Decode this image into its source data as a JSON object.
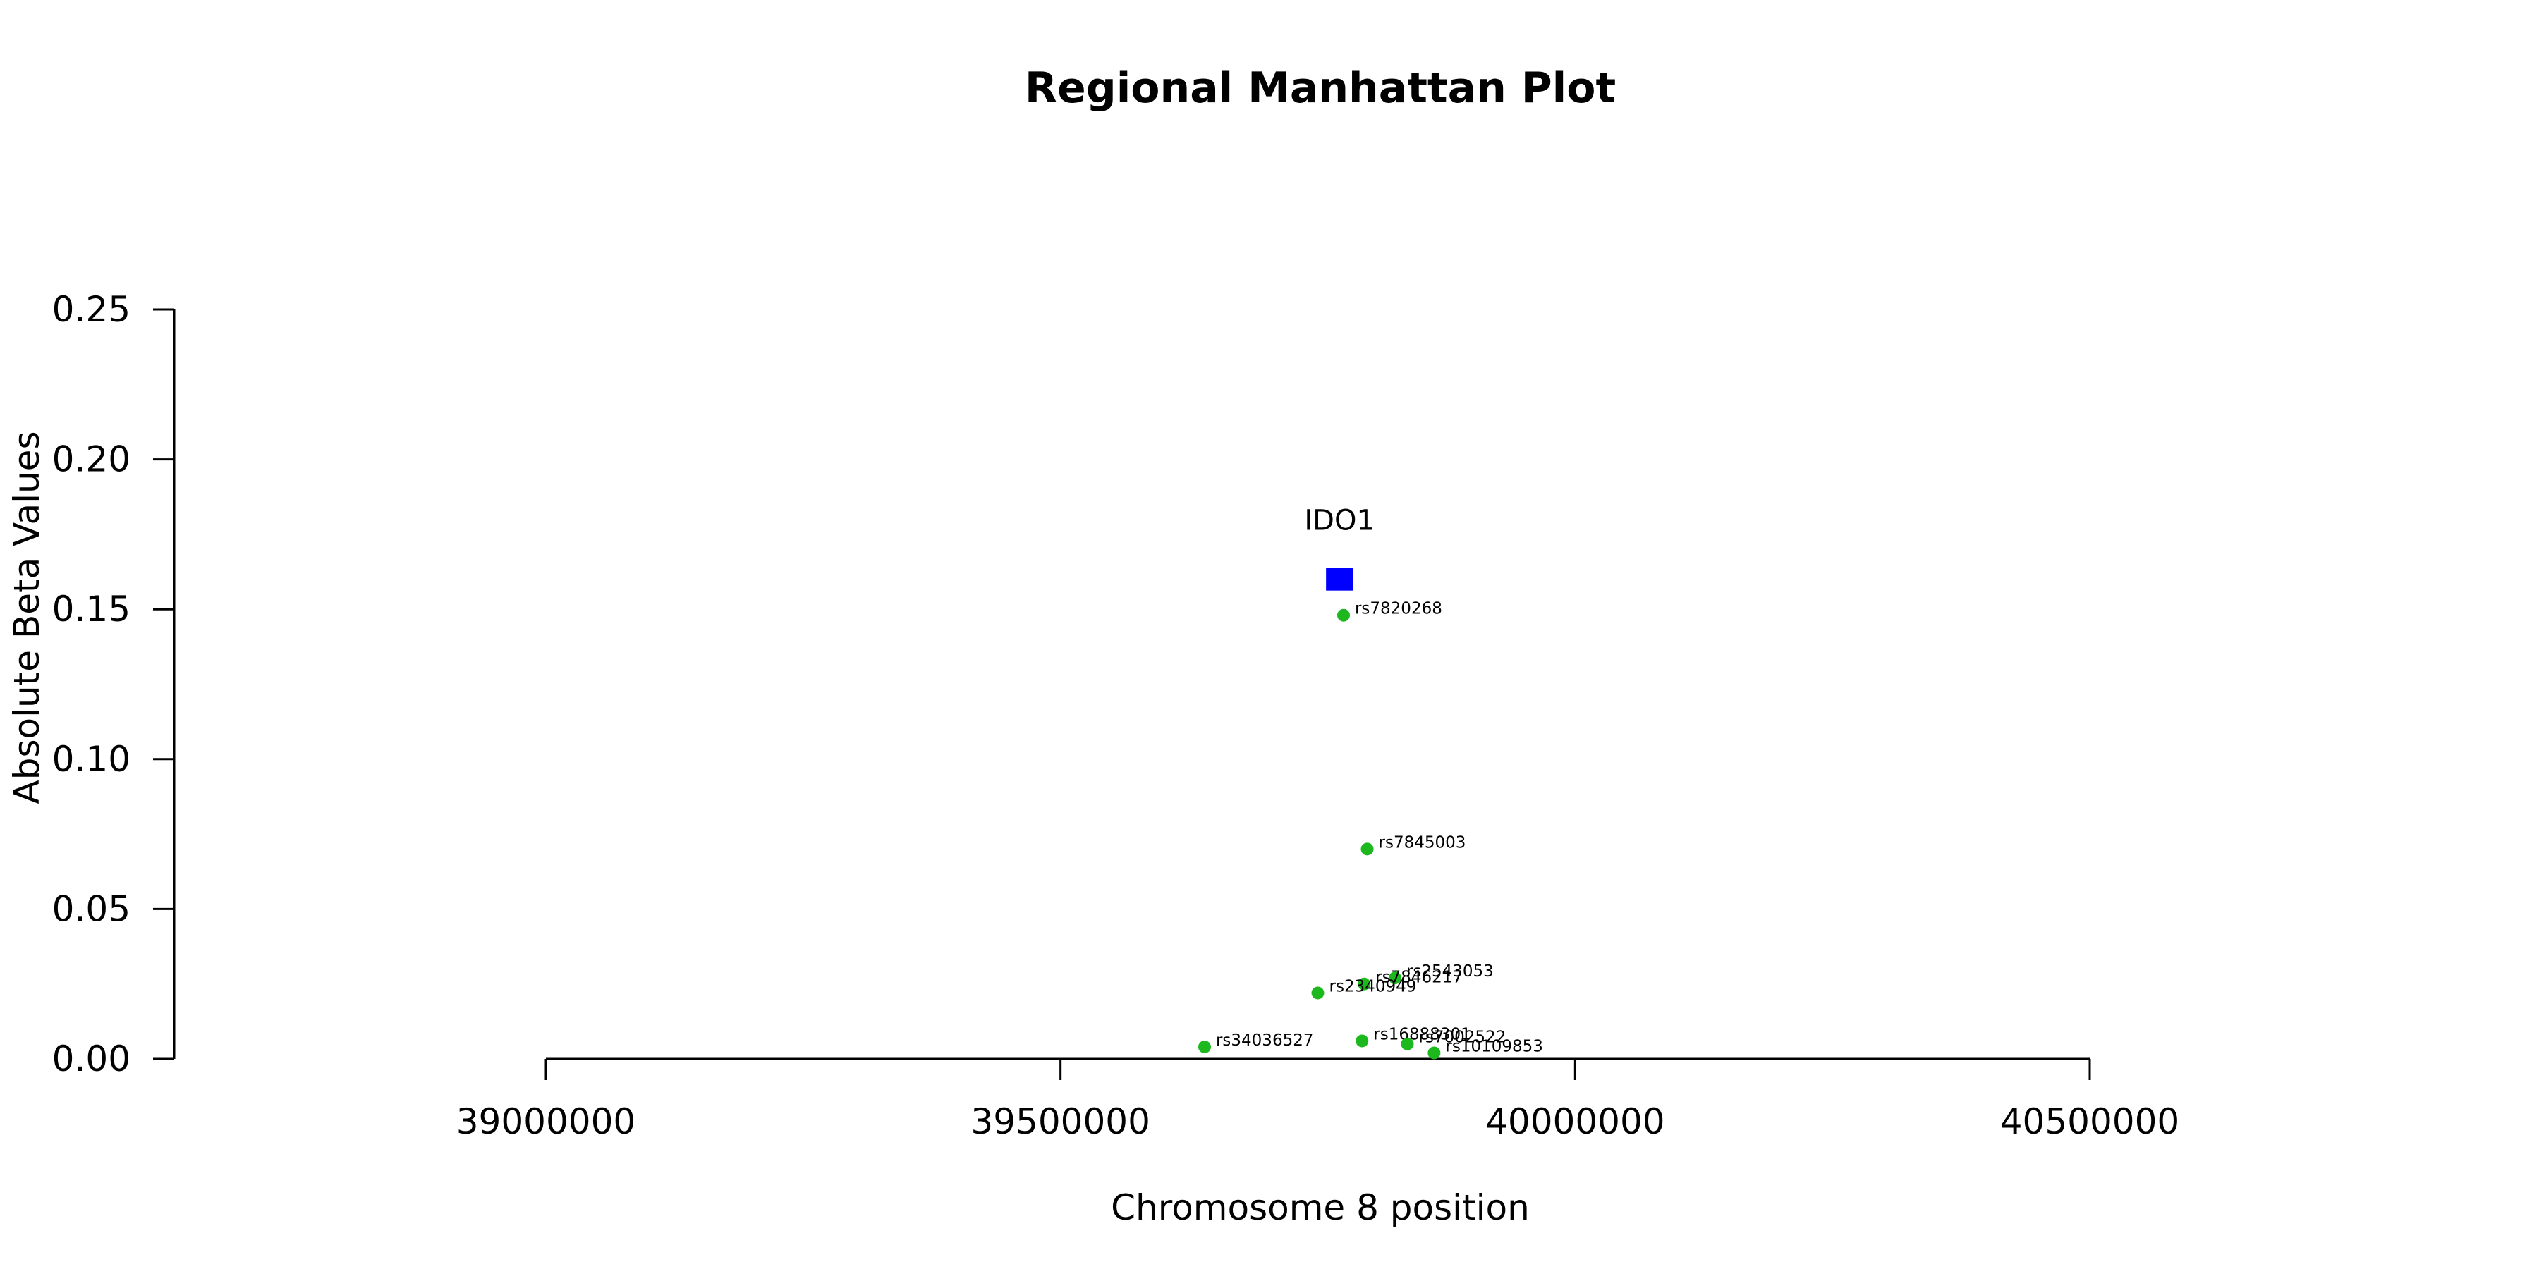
{
  "chart_data": {
    "type": "scatter",
    "title": "Regional Manhattan Plot",
    "xlabel": "Chromosome 8 position",
    "ylabel": "Absolute Beta Values",
    "xlim": [
      39000000,
      40500000
    ],
    "ylim": [
      0,
      0.25
    ],
    "x_ticks": [
      "39000000",
      "39500000",
      "40000000",
      "40500000"
    ],
    "y_ticks": [
      "0.00",
      "0.05",
      "0.10",
      "0.15",
      "0.20",
      "0.25"
    ],
    "grid": false,
    "gene": {
      "name": "IDO1",
      "x": 39771000,
      "y": 0.16,
      "color": "#0000FF",
      "marker": "square"
    },
    "snp_color": "#1DB81D",
    "series": [
      {
        "points": [
          {
            "label": "rs7820268",
            "x": 39775000,
            "y": 0.148
          },
          {
            "label": "rs7845003",
            "x": 39798000,
            "y": 0.07
          },
          {
            "label": "rs2543053",
            "x": 39825000,
            "y": 0.027
          },
          {
            "label": "rs7846217",
            "x": 39795000,
            "y": 0.025
          },
          {
            "label": "rs2340949",
            "x": 39750000,
            "y": 0.022
          },
          {
            "label": "rs34036527",
            "x": 39640000,
            "y": 0.004
          },
          {
            "label": "rs16888301",
            "x": 39793000,
            "y": 0.006
          },
          {
            "label": "rs7002522",
            "x": 39837000,
            "y": 0.005
          },
          {
            "label": "rs10109853",
            "x": 39863000,
            "y": 0.002
          }
        ]
      }
    ]
  }
}
